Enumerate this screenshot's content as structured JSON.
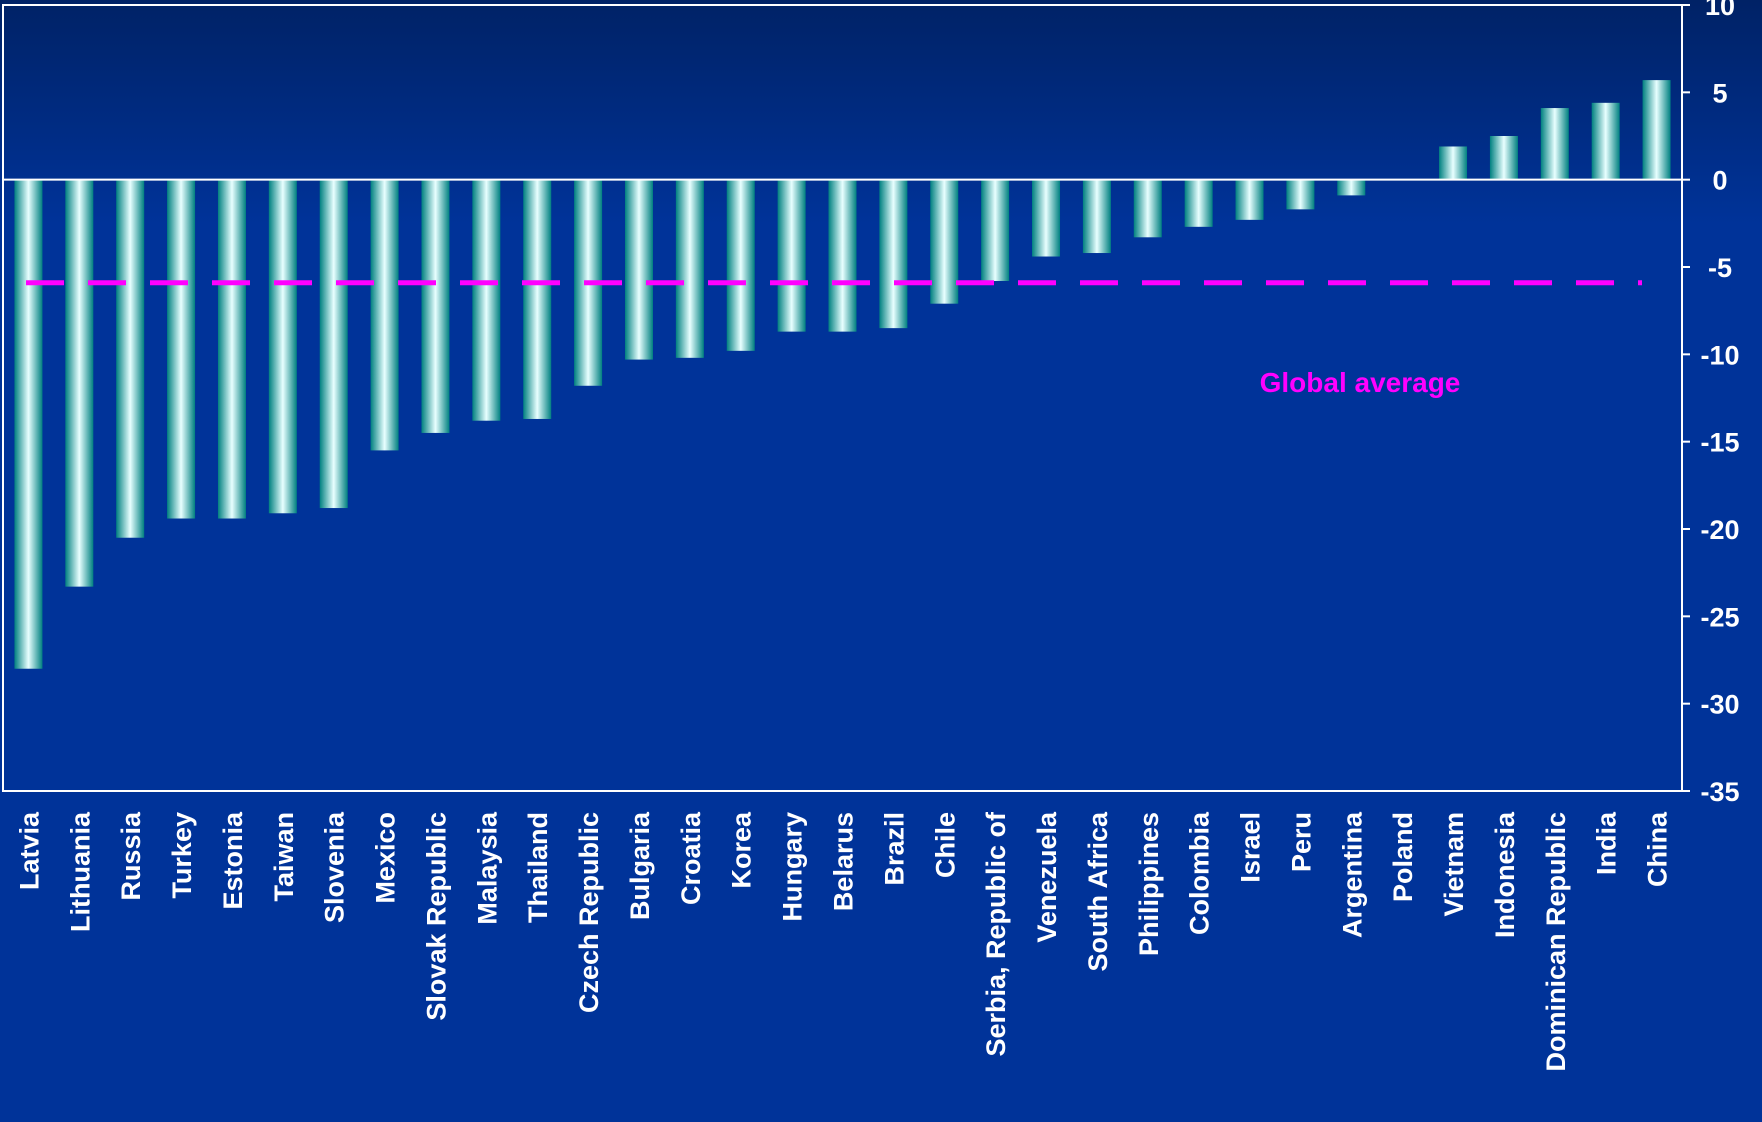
{
  "chart_data": {
    "type": "bar",
    "title": "",
    "xlabel": "",
    "ylabel": "",
    "ylim": [
      -35,
      10
    ],
    "yticks": [
      10,
      5,
      0,
      -5,
      -10,
      -15,
      -20,
      -25,
      -30,
      -35
    ],
    "grid": false,
    "categories": [
      "Latvia",
      "Lithuania",
      "Russia",
      "Turkey",
      "Estonia",
      "Taiwan",
      "Slovenia",
      "Mexico",
      "Slovak Republic",
      "Malaysia",
      "Thailand",
      "Czech Republic",
      "Bulgaria",
      "Croatia",
      "Korea",
      "Hungary",
      "Belarus",
      "Brazil",
      "Chile",
      "Serbia, Republic of",
      "Venezuela",
      "South Africa",
      "Philippines",
      "Colombia",
      "Israel",
      "Peru",
      "Argentina",
      "Poland",
      "Vietnam",
      "Indonesia",
      "Dominican Republic",
      "India",
      "China"
    ],
    "values": [
      -28.0,
      -23.3,
      -20.5,
      -19.4,
      -19.4,
      -19.1,
      -18.8,
      -15.5,
      -14.5,
      -13.8,
      -13.7,
      -11.8,
      -10.3,
      -10.2,
      -9.8,
      -8.7,
      -8.7,
      -8.5,
      -7.1,
      -5.8,
      -4.4,
      -4.2,
      -3.3,
      -2.7,
      -2.3,
      -1.7,
      -0.9,
      0.0,
      1.9,
      2.5,
      4.1,
      4.4,
      5.7
    ],
    "reference_line": {
      "label": "Global average",
      "value": -5.9,
      "color": "#ff00ff"
    },
    "colors": {
      "background": "#003399",
      "bar_light": "#e8ffff",
      "bar_mid": "#00ffcc",
      "bar_dark": "#008080",
      "axis": "#ffffff",
      "text": "#ffffff",
      "average": "#ff00ff"
    }
  }
}
